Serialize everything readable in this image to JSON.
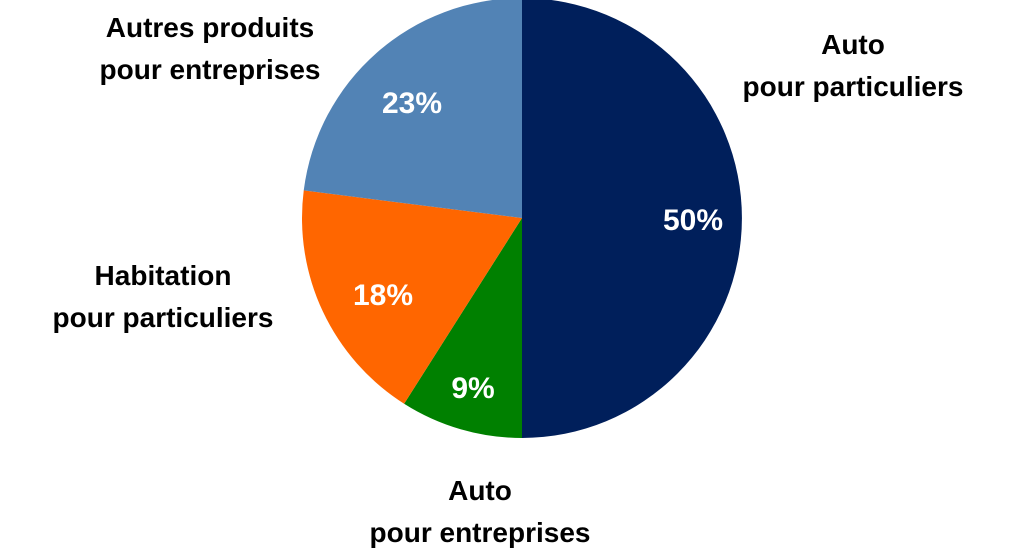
{
  "chart_data": {
    "type": "pie",
    "categories": [
      "Auto\npour particuliers",
      "Auto\npour entreprises",
      "Habitation\npour particuliers",
      "Autres produits\npour entreprises"
    ],
    "values": [
      50,
      9,
      18,
      23
    ],
    "value_labels": [
      "50%",
      "9%",
      "18%",
      "23%"
    ],
    "colors": [
      "#001f5b",
      "#008000",
      "#ff6600",
      "#5283b5"
    ]
  }
}
